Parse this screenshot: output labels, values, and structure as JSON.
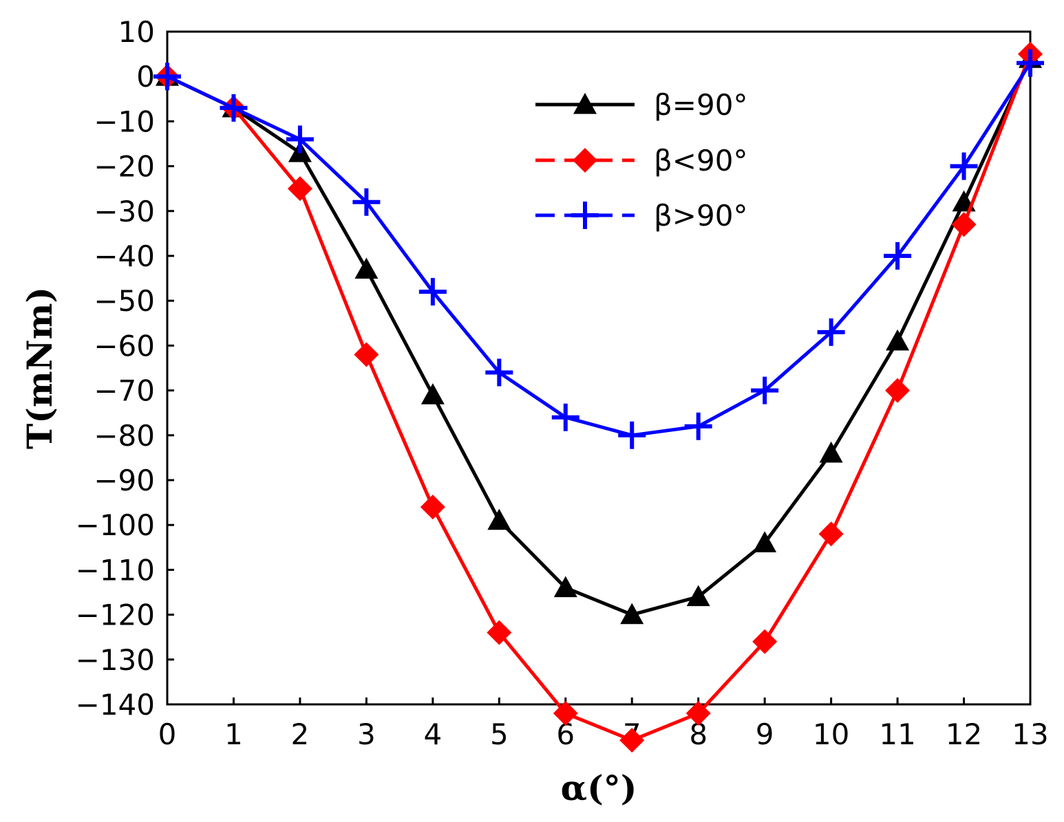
{
  "chart_data": {
    "type": "line",
    "title": "",
    "xlabel": "α(°)",
    "ylabel": "T(mNm)",
    "xlim": [
      0,
      13
    ],
    "ylim": [
      -140,
      10
    ],
    "xticks": [
      0,
      1,
      2,
      3,
      4,
      5,
      6,
      7,
      8,
      9,
      10,
      11,
      12,
      13
    ],
    "yticks": [
      10,
      0,
      -10,
      -20,
      -30,
      -40,
      -50,
      -60,
      -70,
      -80,
      -90,
      -100,
      -110,
      -120,
      -130,
      -140
    ],
    "ytick_labels": [
      "10",
      "0",
      "−10",
      "−20",
      "−30",
      "−40",
      "−50",
      "−60",
      "−70",
      "−80",
      "−90",
      "−100",
      "−110",
      "−120",
      "−130",
      "−140"
    ],
    "grid": false,
    "legend_position": "top-center",
    "x": [
      0,
      1,
      2,
      3,
      4,
      5,
      6,
      7,
      8,
      9,
      10,
      11,
      12,
      13
    ],
    "series": [
      {
        "name": "β=90°",
        "color": "#000000",
        "marker": "triangle",
        "values": [
          0,
          -7,
          -17,
          -43,
          -71,
          -99,
          -114,
          -120,
          -116,
          -104,
          -84,
          -59,
          -28,
          4
        ]
      },
      {
        "name": "β<90°",
        "color": "#ff0000",
        "marker": "diamond",
        "values": [
          0,
          -7,
          -25,
          -62,
          -96,
          -124,
          -142,
          -148,
          -142,
          -126,
          -102,
          -70,
          -33,
          5
        ]
      },
      {
        "name": "β>90°",
        "color": "#0000ff",
        "marker": "plus",
        "values": [
          0,
          -7,
          -14,
          -28,
          -48,
          -66,
          -76,
          -80,
          -78,
          -70,
          -57,
          -40,
          -20,
          3
        ]
      }
    ]
  }
}
